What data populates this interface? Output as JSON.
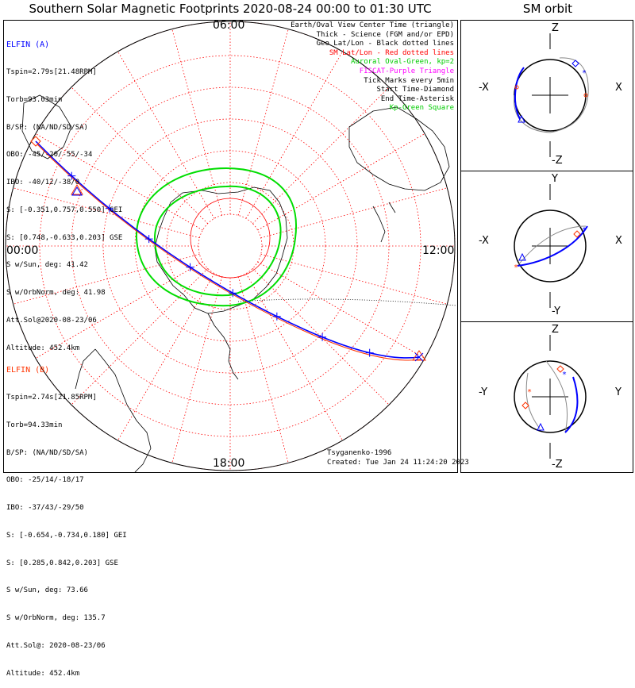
{
  "title": "Southern Solar Magnetic Footprints 2020-08-24 00:00 to 01:30 UTC",
  "orbit_title": "SM orbit",
  "hour_labels": {
    "top": "06:00",
    "left": "00:00",
    "right": "12:00",
    "bottom": "18:00"
  },
  "elfin_a": {
    "name": "ELFIN (A)",
    "color": "#0000ff",
    "lines": [
      "Tspin=2.79s[21.48RPM]",
      "Torb=93.03min",
      "B/SP: (NA/ND/SD/SA)",
      "OBO: -45/-20/-55/-34",
      "IBO: -40/12/-38/0",
      "S: [-0.351,0.757,0.550] GEI",
      "S: [0.748,-0.633,0.203] GSE",
      "S w/Sun, deg: 41.42",
      "S w/OrbNorm, deg: 41.98",
      "Att.Sol@2020-08-23/06",
      "Altitude: 452.4km"
    ]
  },
  "elfin_b": {
    "name": "ELFIN (B)",
    "color": "#ff3300",
    "lines": [
      "Tspin=2.74s[21.85RPM]",
      "Torb=94.33min",
      "B/SP: (NA/ND/SD/SA)",
      "OBO: -25/14/-18/17",
      "IBO: -37/43/-29/50",
      "S: [-0.654,-0.734,0.180] GEI",
      "S: [0.285,0.842,0.203] GSE",
      "S w/Sun, deg: 73.66",
      "S w/OrbNorm, deg: 135.7",
      "Att.Sol@: 2020-08-23/06",
      "Altitude: 452.4km"
    ]
  },
  "legend": [
    {
      "text": "Earth/Oval View Center Time (triangle)",
      "color": "#000000"
    },
    {
      "text": "Thick - Science (FGM and/or EPD)",
      "color": "#000000"
    },
    {
      "text": "Geo Lat/Lon - Black dotted lines",
      "color": "#000000"
    },
    {
      "text": "SM Lat/Lon - Red dotted lines",
      "color": "#ff0000"
    },
    {
      "text": "Auroral Oval-Green, kp=2",
      "color": "#00cc00"
    },
    {
      "text": "FISCAT-Purple Triangle",
      "color": "#ff00ff"
    },
    {
      "text": "Tick Marks every 5min",
      "color": "#000000"
    },
    {
      "text": "Start Time-Diamond",
      "color": "#000000"
    },
    {
      "text": "End Time-Asterisk",
      "color": "#000000"
    },
    {
      "text": "Kp-Green Square",
      "color": "#00cc00"
    }
  ],
  "footer": {
    "author": "Tsyganenko-1996",
    "created": "Created: Tue Jan 24 11:24:20 2023"
  },
  "orbit_panels": [
    {
      "top": "Z",
      "bottom": "-Z",
      "left": "-X",
      "right": "X"
    },
    {
      "top": "Y",
      "bottom": "-Y",
      "left": "-X",
      "right": "X"
    },
    {
      "top": "Z",
      "bottom": "-Z",
      "left": "-Y",
      "right": "Y"
    }
  ],
  "colors": {
    "trackA": "#0000ff",
    "trackB": "#ff3300",
    "sm_grid": "#ff0000",
    "oval": "#00dd00",
    "geo_grid": "#000000"
  }
}
